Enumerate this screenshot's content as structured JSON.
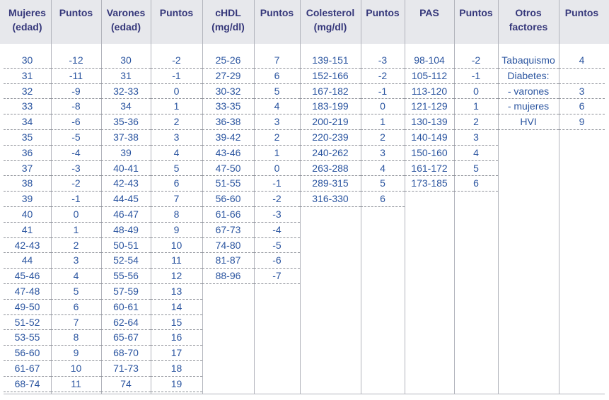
{
  "columns": [
    {
      "header": "Mujeres\n(edad)",
      "values": [
        "30",
        "31",
        "32",
        "33",
        "34",
        "35",
        "36",
        "37",
        "38",
        "39",
        "40",
        "41",
        "42-43",
        "44",
        "45-46",
        "47-48",
        "49-50",
        "51-52",
        "53-55",
        "56-60",
        "61-67",
        "68-74"
      ]
    },
    {
      "header": "Puntos",
      "values": [
        "-12",
        "-11",
        "-9",
        "-8",
        "-6",
        "-5",
        "-4",
        "-3",
        "-2",
        "-1",
        "0",
        "1",
        "2",
        "3",
        "4",
        "5",
        "6",
        "7",
        "8",
        "9",
        "10",
        "11"
      ]
    },
    {
      "header": "Varones\n(edad)",
      "values": [
        "30",
        "31",
        "32-33",
        "34",
        "35-36",
        "37-38",
        "39",
        "40-41",
        "42-43",
        "44-45",
        "46-47",
        "48-49",
        "50-51",
        "52-54",
        "55-56",
        "57-59",
        "60-61",
        "62-64",
        "65-67",
        "68-70",
        "71-73",
        "74"
      ]
    },
    {
      "header": "Puntos",
      "values": [
        "-2",
        "-1",
        "0",
        "1",
        "2",
        "3",
        "4",
        "5",
        "6",
        "7",
        "8",
        "9",
        "10",
        "11",
        "12",
        "13",
        "14",
        "15",
        "16",
        "17",
        "18",
        "19"
      ]
    },
    {
      "header": "cHDL\n(mg/dl)",
      "values": [
        "25-26",
        "27-29",
        "30-32",
        "33-35",
        "36-38",
        "39-42",
        "43-46",
        "47-50",
        "51-55",
        "56-60",
        "61-66",
        "67-73",
        "74-80",
        "81-87",
        "88-96"
      ]
    },
    {
      "header": "Puntos",
      "values": [
        "7",
        "6",
        "5",
        "4",
        "3",
        "2",
        "1",
        "0",
        "-1",
        "-2",
        "-3",
        "-4",
        "-5",
        "-6",
        "-7"
      ]
    },
    {
      "header": "Colesterol\n(mg/dl)",
      "values": [
        "139-151",
        "152-166",
        "167-182",
        "183-199",
        "200-219",
        "220-239",
        "240-262",
        "263-288",
        "289-315",
        "316-330"
      ]
    },
    {
      "header": "Puntos",
      "values": [
        "-3",
        "-2",
        "-1",
        "0",
        "1",
        "2",
        "3",
        "4",
        "5",
        "6"
      ]
    },
    {
      "header": "PAS",
      "values": [
        "98-104",
        "105-112",
        "113-120",
        "121-129",
        "130-139",
        "140-149",
        "150-160",
        "161-172",
        "173-185"
      ]
    },
    {
      "header": "Puntos",
      "values": [
        "-2",
        "-1",
        "0",
        "1",
        "2",
        "3",
        "4",
        "5",
        "6"
      ]
    },
    {
      "header": "Otros\nfactores",
      "values": [
        "Tabaquismo",
        "Diabetes:",
        "- varones",
        "- mujeres",
        "HVI"
      ]
    },
    {
      "header": "Puntos",
      "values": [
        "4",
        "",
        "3",
        "6",
        "9"
      ]
    }
  ]
}
